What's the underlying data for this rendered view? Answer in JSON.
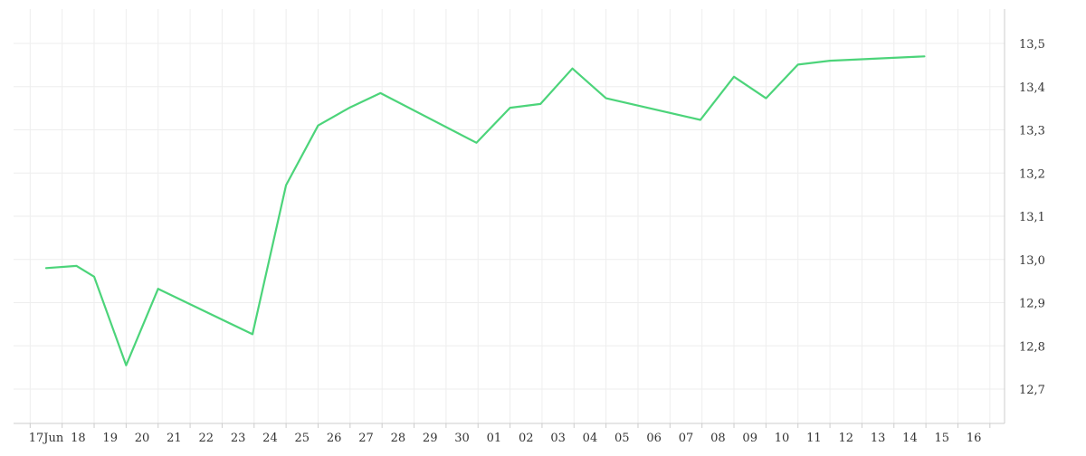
{
  "chart_data": {
    "type": "line",
    "x": [
      "17Jun",
      "18",
      "19",
      "20",
      "21",
      "22",
      "23",
      "24",
      "25",
      "26",
      "27",
      "28",
      "29",
      "30",
      "01",
      "02",
      "03",
      "04",
      "05",
      "06",
      "07",
      "08",
      "09",
      "10",
      "11",
      "12",
      "13",
      "14",
      "15",
      "16"
    ],
    "series": [
      {
        "points": [
          {
            "x": 0.0,
            "y": 12.98
          },
          {
            "x": 0.95,
            "y": 12.985
          },
          {
            "x": 1.5,
            "y": 12.96
          },
          {
            "x": 2.5,
            "y": 12.755
          },
          {
            "x": 3.5,
            "y": 12.932
          },
          {
            "x": 6.45,
            "y": 12.827
          },
          {
            "x": 7.5,
            "y": 13.172
          },
          {
            "x": 8.5,
            "y": 13.31
          },
          {
            "x": 9.5,
            "y": 13.352
          },
          {
            "x": 10.45,
            "y": 13.385
          },
          {
            "x": 13.45,
            "y": 13.27
          },
          {
            "x": 14.5,
            "y": 13.351
          },
          {
            "x": 15.45,
            "y": 13.36
          },
          {
            "x": 16.45,
            "y": 13.442
          },
          {
            "x": 17.5,
            "y": 13.373
          },
          {
            "x": 20.45,
            "y": 13.323
          },
          {
            "x": 21.5,
            "y": 13.423
          },
          {
            "x": 22.5,
            "y": 13.373
          },
          {
            "x": 23.5,
            "y": 13.451
          },
          {
            "x": 24.5,
            "y": 13.46
          },
          {
            "x": 27.45,
            "y": 13.47
          }
        ]
      }
    ],
    "y_ticks": [
      "12,7",
      "12,8",
      "12,9",
      "13,0",
      "13,1",
      "13,2",
      "13,3",
      "13,4",
      "13,5"
    ],
    "y_tick_values": [
      12.7,
      12.8,
      12.9,
      13.0,
      13.1,
      13.2,
      13.3,
      13.4,
      13.5
    ],
    "ylim": [
      12.63,
      13.56
    ],
    "grid": true,
    "line_color": "#4cd47a",
    "grid_color": "#eeeeee",
    "axis_color": "#cccccc",
    "text_color": "#333333"
  }
}
